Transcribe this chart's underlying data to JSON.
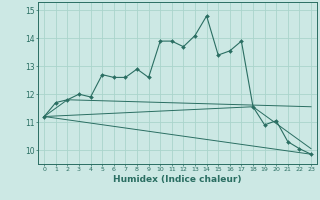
{
  "title": "",
  "xlabel": "Humidex (Indice chaleur)",
  "background_color": "#cce8e4",
  "grid_color": "#aad4cc",
  "line_color": "#2a6e62",
  "xlim": [
    -0.5,
    23.5
  ],
  "ylim": [
    9.5,
    15.3
  ],
  "yticks": [
    10,
    11,
    12,
    13,
    14,
    15
  ],
  "xticks": [
    0,
    1,
    2,
    3,
    4,
    5,
    6,
    7,
    8,
    9,
    10,
    11,
    12,
    13,
    14,
    15,
    16,
    17,
    18,
    19,
    20,
    21,
    22,
    23
  ],
  "series1_x": [
    0,
    1,
    2,
    3,
    4,
    5,
    6,
    7,
    8,
    9,
    10,
    11,
    12,
    13,
    14,
    15,
    16,
    17,
    18,
    19,
    20,
    21,
    22,
    23
  ],
  "series1_y": [
    11.2,
    11.7,
    11.8,
    12.0,
    11.9,
    12.7,
    12.6,
    12.6,
    12.9,
    12.6,
    13.9,
    13.9,
    13.7,
    14.1,
    14.8,
    13.4,
    13.55,
    13.9,
    11.55,
    10.9,
    11.05,
    10.3,
    10.05,
    9.85
  ],
  "series2_x": [
    0,
    2,
    23
  ],
  "series2_y": [
    11.2,
    11.8,
    11.55
  ],
  "series3_x": [
    0,
    18,
    23
  ],
  "series3_y": [
    11.2,
    11.55,
    10.05
  ],
  "series4_x": [
    0,
    23
  ],
  "series4_y": [
    11.2,
    9.85
  ]
}
